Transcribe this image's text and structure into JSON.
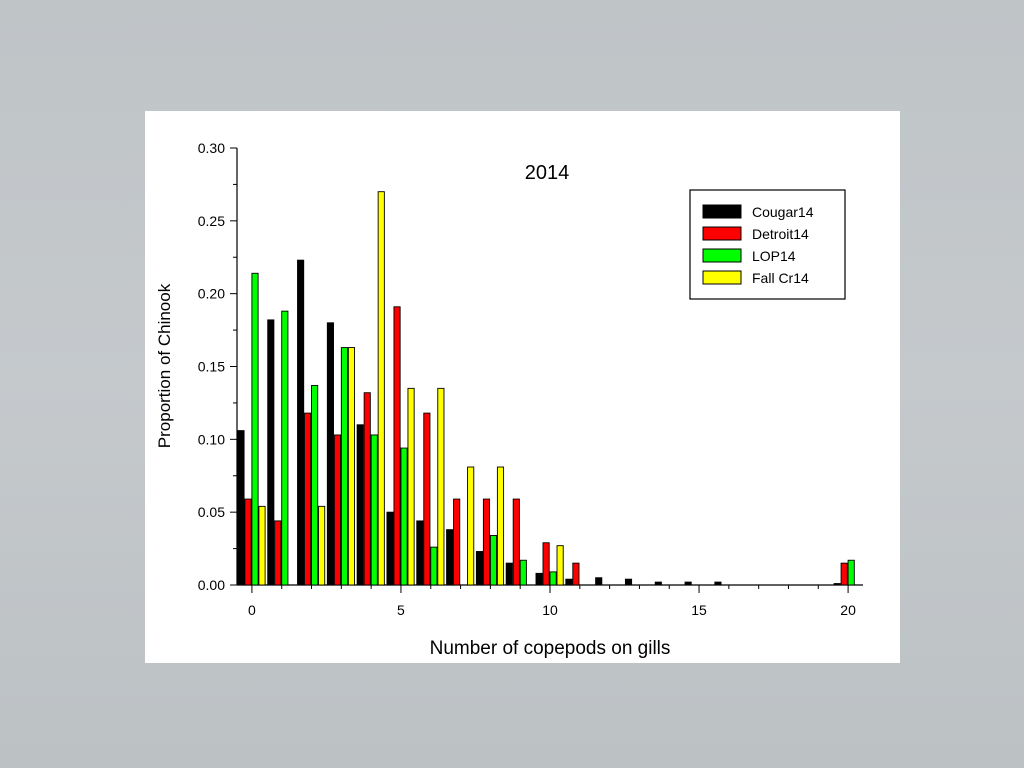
{
  "chart_data": {
    "type": "bar",
    "title": "2014",
    "xlabel": "Number of copepods on gills",
    "ylabel": "Proportion of Chinook",
    "xlim": [
      -0.5,
      20.5
    ],
    "ylim": [
      0,
      0.3
    ],
    "xticks": [
      0,
      5,
      10,
      15,
      20
    ],
    "yticks": [
      "0.00",
      "0.05",
      "0.10",
      "0.15",
      "0.20",
      "0.25",
      "0.30"
    ],
    "legend_position": "top-right",
    "x": [
      0,
      1,
      2,
      3,
      4,
      5,
      6,
      7,
      8,
      9,
      10,
      11,
      12,
      13,
      14,
      15,
      16,
      17,
      18,
      19,
      20
    ],
    "series": [
      {
        "name": "Cougar14",
        "color": "#000000",
        "values": [
          0.106,
          0.182,
          0.223,
          0.18,
          0.11,
          0.05,
          0.044,
          0.038,
          0.023,
          0.015,
          0.008,
          0.004,
          0.005,
          0.004,
          0.002,
          0.002,
          0.002,
          0,
          0,
          0,
          0.001
        ]
      },
      {
        "name": "Detroit14",
        "color": "#ff0000",
        "values": [
          0.059,
          0.044,
          0.118,
          0.103,
          0.132,
          0.191,
          0.118,
          0.059,
          0.059,
          0.059,
          0.029,
          0.015,
          0,
          0,
          0,
          0,
          0,
          0,
          0,
          0,
          0.015
        ]
      },
      {
        "name": "LOP14",
        "color": "#00ff00",
        "values": [
          0.214,
          0.188,
          0.137,
          0.163,
          0.103,
          0.094,
          0.026,
          0,
          0.034,
          0.017,
          0.009,
          0,
          0,
          0,
          0,
          0,
          0,
          0,
          0,
          0,
          0.017
        ]
      },
      {
        "name": "Fall Cr14",
        "color": "#ffff00",
        "values": [
          0.054,
          0,
          0.054,
          0.163,
          0.27,
          0.135,
          0.135,
          0.081,
          0.081,
          0,
          0.027,
          0,
          0,
          0,
          0,
          0,
          0,
          0,
          0,
          0,
          0
        ]
      }
    ]
  }
}
